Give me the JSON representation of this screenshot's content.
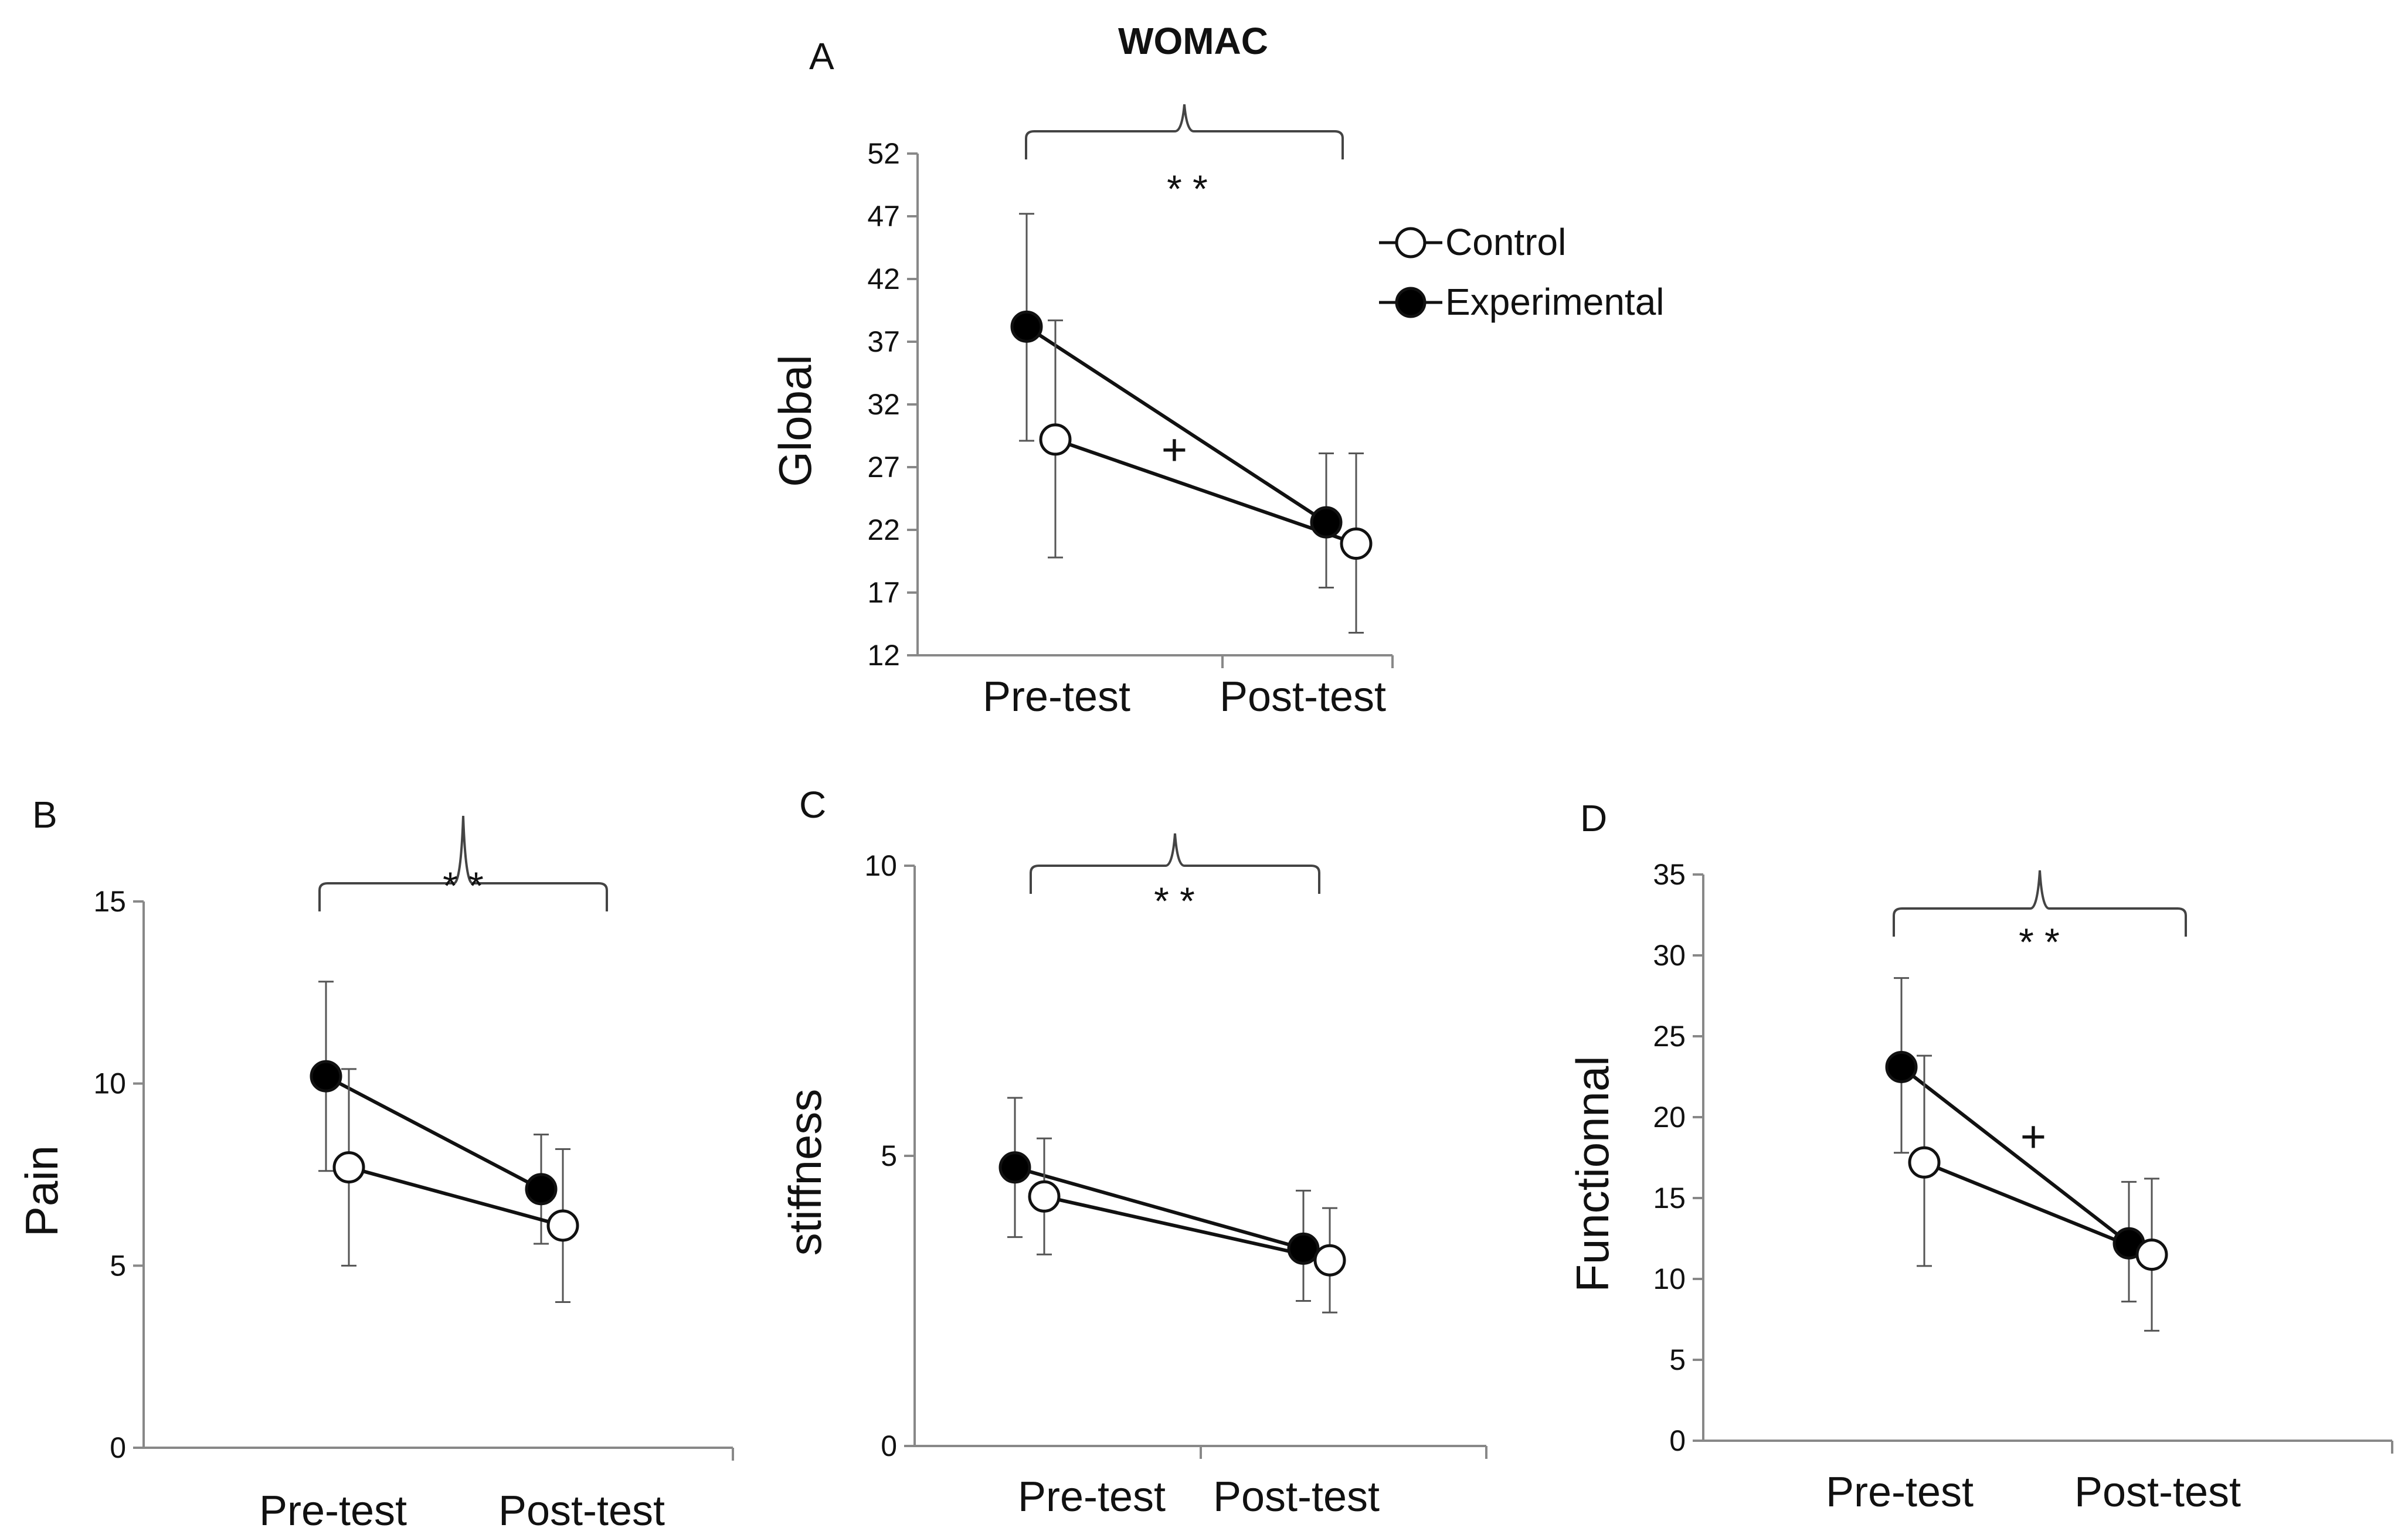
{
  "figure_title": "WOMAC",
  "legend": [
    {
      "series": "control",
      "label": "Control"
    },
    {
      "series": "experimental",
      "label": "Experimental"
    }
  ],
  "colors": {
    "axis": "#888888",
    "line": "#111111",
    "control_fill": "#ffffff",
    "experimental_fill": "#000000"
  },
  "chart_data": [
    {
      "id": "A",
      "panel_label": "A",
      "type": "line",
      "ylabel": "Global",
      "categories": [
        "Pre-test",
        "Post-test"
      ],
      "ylim": [
        12,
        52
      ],
      "yticks": [
        12,
        17,
        22,
        27,
        32,
        37,
        42,
        47,
        52
      ],
      "series": [
        {
          "name": "Control",
          "style": "open",
          "values": [
            29.2,
            20.9
          ],
          "err_low": [
            19.8,
            13.8
          ],
          "err_high": [
            38.7,
            28.1
          ]
        },
        {
          "name": "Experimental",
          "style": "filled",
          "values": [
            38.2,
            22.6
          ],
          "err_low": [
            29.1,
            17.4
          ],
          "err_high": [
            47.2,
            28.1
          ]
        }
      ],
      "annotations": {
        "bracket_label": "* *",
        "plus_label": "+"
      }
    },
    {
      "id": "B",
      "panel_label": "B",
      "type": "line",
      "ylabel": "Pain",
      "categories": [
        "Pre-test",
        "Post-test"
      ],
      "ylim": [
        0,
        15
      ],
      "yticks": [
        0,
        5,
        10,
        15
      ],
      "series": [
        {
          "name": "Control",
          "style": "open",
          "values": [
            7.7,
            6.1
          ],
          "err_low": [
            5.0,
            4.0
          ],
          "err_high": [
            10.4,
            8.2
          ]
        },
        {
          "name": "Experimental",
          "style": "filled",
          "values": [
            10.2,
            7.1
          ],
          "err_low": [
            7.6,
            5.6
          ],
          "err_high": [
            12.8,
            8.6
          ]
        }
      ],
      "annotations": {
        "bracket_label": "* *"
      }
    },
    {
      "id": "C",
      "panel_label": "C",
      "type": "line",
      "ylabel": "stiffness",
      "categories": [
        "Pre-test",
        "Post-test"
      ],
      "ylim": [
        0,
        10
      ],
      "yticks": [
        0,
        5,
        10
      ],
      "series": [
        {
          "name": "Control",
          "style": "open",
          "values": [
            4.3,
            3.2
          ],
          "err_low": [
            3.3,
            2.3
          ],
          "err_high": [
            5.3,
            4.1
          ]
        },
        {
          "name": "Experimental",
          "style": "filled",
          "values": [
            4.8,
            3.4
          ],
          "err_low": [
            3.6,
            2.5
          ],
          "err_high": [
            6.0,
            4.4
          ]
        }
      ],
      "annotations": {
        "bracket_label": "* *"
      }
    },
    {
      "id": "D",
      "panel_label": "D",
      "type": "line",
      "ylabel": "Functionnal",
      "categories": [
        "Pre-test",
        "Post-test"
      ],
      "ylim": [
        0,
        35
      ],
      "yticks": [
        0,
        5,
        10,
        15,
        20,
        25,
        30,
        35
      ],
      "series": [
        {
          "name": "Control",
          "style": "open",
          "values": [
            17.2,
            11.5
          ],
          "err_low": [
            10.8,
            6.8
          ],
          "err_high": [
            23.8,
            16.2
          ]
        },
        {
          "name": "Experimental",
          "style": "filled",
          "values": [
            23.1,
            12.2
          ],
          "err_low": [
            17.8,
            8.6
          ],
          "err_high": [
            28.6,
            16.0
          ]
        }
      ],
      "annotations": {
        "bracket_label": "* *",
        "plus_label": "+"
      }
    }
  ]
}
